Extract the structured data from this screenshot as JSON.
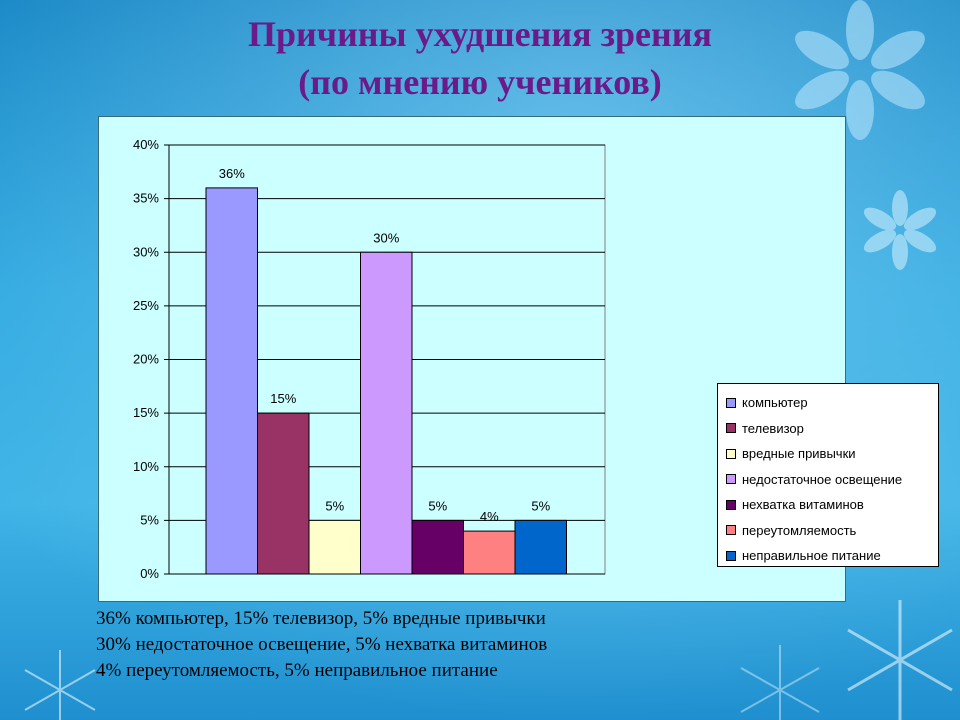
{
  "slide": {
    "title_line1": "Причины ухудшения зрения",
    "title_line2": "(по мнению учеников)",
    "summary": [
      "36% компьютер, 15% телевизор, 5% вредные привычки",
      "30% недостаточное освещение, 5% нехватка витаминов",
      "4% переутомляемость, 5% неправильное питание"
    ]
  },
  "chart_data": {
    "type": "bar",
    "title": "",
    "xlabel": "",
    "ylabel": "",
    "ylim": [
      0,
      40
    ],
    "yticks": [
      "0%",
      "5%",
      "10%",
      "15%",
      "20%",
      "25%",
      "30%",
      "35%",
      "40%"
    ],
    "grid": true,
    "legend_position": "right",
    "series": [
      {
        "name": "компьютер",
        "value": 36,
        "label": "36%",
        "color": "#9999ff"
      },
      {
        "name": "телевизор",
        "value": 15,
        "label": "15%",
        "color": "#993366"
      },
      {
        "name": "вредные привычки",
        "value": 5,
        "label": "5%",
        "color": "#ffffcc"
      },
      {
        "name": "недостаточное освещение",
        "value": 30,
        "label": "30%",
        "color": "#cc99ff"
      },
      {
        "name": "нехватка витаминов",
        "value": 5,
        "label": "5%",
        "color": "#660066"
      },
      {
        "name": "переутомляемость",
        "value": 4,
        "label": "4%",
        "color": "#ff8080"
      },
      {
        "name": "неправильное питание",
        "value": 5,
        "label": "5%",
        "color": "#0066cc"
      }
    ]
  }
}
